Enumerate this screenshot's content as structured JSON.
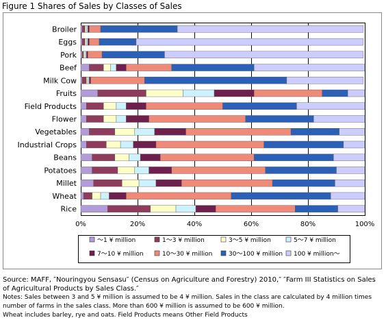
{
  "figure_title": "Figure 1 Shares of Sales by Classes of Sales",
  "chart_data": {
    "type": "bar",
    "orientation": "horizontal",
    "stacked": true,
    "percent": true,
    "categories": [
      "Broiler",
      "Eggs",
      "Pork",
      "Beef",
      "Milk Cow",
      "Fruits",
      "Field Products",
      "Flower",
      "Vegetables",
      "Industrial Crops",
      "Beans",
      "Potatoes",
      "Millet",
      "Wheat",
      "Rice"
    ],
    "series": [
      {
        "name": "～1 ¥ million",
        "color": "#b19cd9",
        "values": [
          0.5,
          0.5,
          0.5,
          3,
          0.5,
          6,
          2,
          2,
          3,
          2,
          4,
          4,
          4.5,
          1,
          9.5
        ]
      },
      {
        "name": "1～3 ¥ million",
        "color": "#8e3b5c",
        "values": [
          1,
          1,
          0.5,
          5,
          1.5,
          17,
          6,
          6,
          9,
          7,
          8,
          9,
          10,
          3,
          15
        ]
      },
      {
        "name": "3～5 ¥ million",
        "color": "#ffffc8",
        "values": [
          0.5,
          0.5,
          0.5,
          2.5,
          0.5,
          13,
          4.5,
          4.5,
          7,
          5,
          5,
          6,
          6,
          3,
          9
        ]
      },
      {
        "name": "5～7 ¥ million",
        "color": "#ccf2ff",
        "values": [
          0.5,
          0.5,
          0.5,
          2,
          0.5,
          11,
          3.5,
          3.5,
          7,
          4.5,
          4,
          5,
          6,
          3,
          7
        ]
      },
      {
        "name": "7～10 ¥ million",
        "color": "#6e1f4e",
        "values": [
          0.5,
          0.5,
          0.5,
          3.5,
          0.5,
          14,
          7,
          8,
          11,
          8,
          7,
          8,
          9,
          6,
          7
        ]
      },
      {
        "name": "10～30 ¥ million",
        "color": "#f08a78",
        "values": [
          4,
          3.5,
          5,
          16,
          19,
          24,
          27,
          34,
          37,
          38,
          33,
          33,
          32,
          37,
          28
        ]
      },
      {
        "name": "30～100 ¥ million",
        "color": "#2b60b8",
        "values": [
          27,
          13,
          22,
          29,
          50,
          9,
          26,
          24,
          17,
          28,
          28,
          25,
          22,
          35,
          15
        ]
      },
      {
        "name": "100 ¥ million～",
        "color": "#ccccff",
        "values": [
          65.5,
          80,
          70,
          39,
          27,
          6,
          24,
          18,
          9,
          7.5,
          11,
          10,
          10.5,
          12,
          9.5
        ]
      }
    ],
    "x_ticks": [
      "0%",
      "20%",
      "40%",
      "60%",
      "80%",
      "100%"
    ],
    "xlim": [
      0,
      100
    ],
    "grid": "vertical",
    "legend_position": "bottom"
  },
  "source_text": "Source: MAFF, ″Nouringyou Sensasu″ (Census on Agriculture and Forestry) 2010,″ ″Farm III Statistics on Sales of Agricultural Products by Sales Class.″",
  "notes": [
    "Notes: Sales between 3 and 5 ¥ million is assumed to be 4 ¥ million. Sales in the class are calculated by 4 million times number of farms in the sales class. More than 600 ¥ million is assumed to be 600 ¥ million.",
    "Wheat includes barley, rye and oats. Field Products means Other Field Products"
  ]
}
